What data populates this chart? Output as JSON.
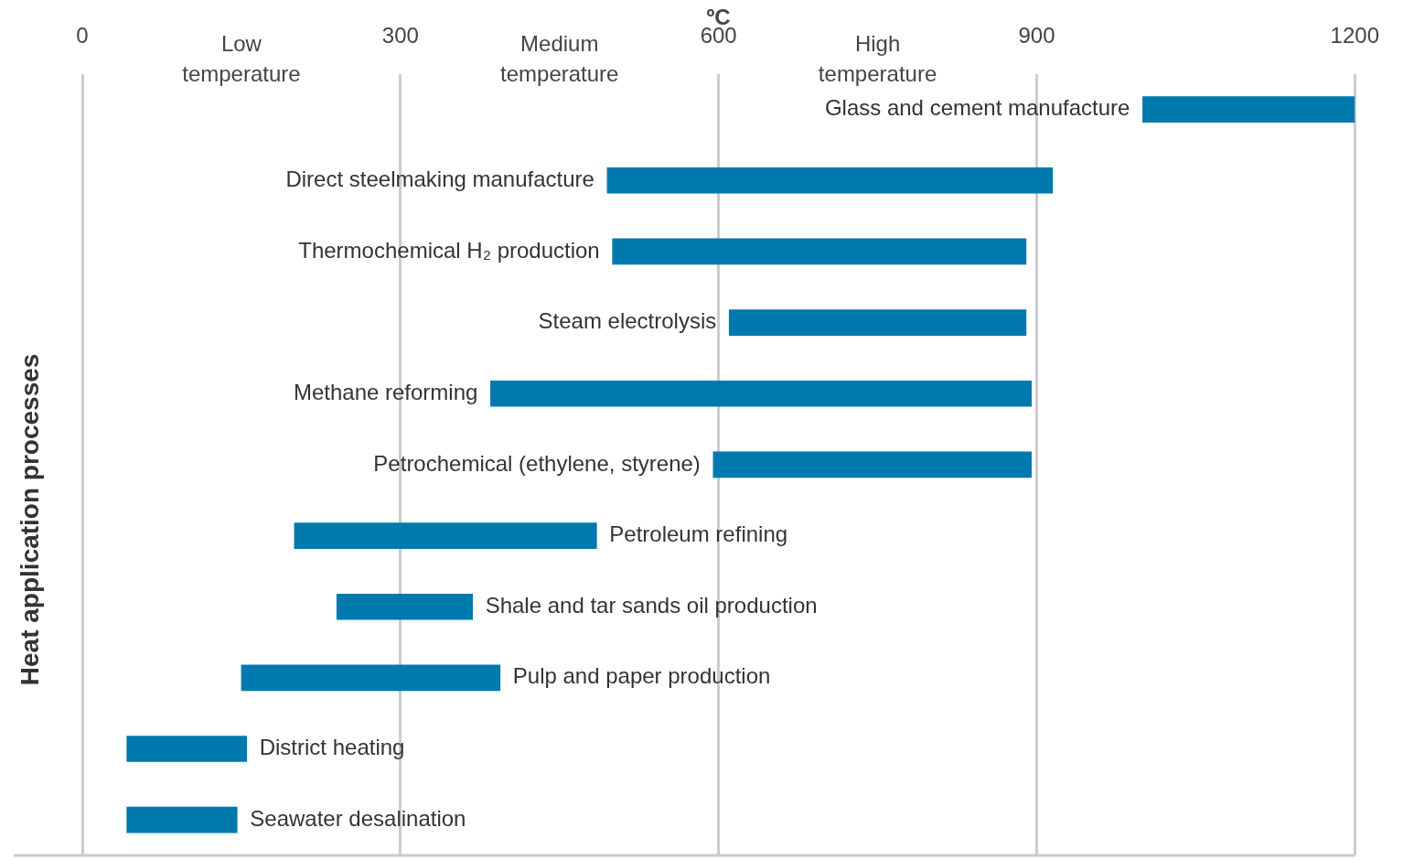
{
  "chart_data": {
    "type": "bar",
    "orientation": "horizontal",
    "xlabel": "ºC",
    "ylabel": "Heat application processes",
    "categories": [
      "Glass and cement manufacture",
      "Direct steelmaking manufacture",
      "Thermochemical H₂ production",
      "Steam electrolysis",
      "Methane reforming",
      "Petrochemical (ethylene, styrene)",
      "Petroleum refining",
      "Shale and tar sands oil production",
      "Pulp and paper production",
      "District heating",
      "Seawater desalination"
    ],
    "base": [
      1000,
      495,
      500,
      610,
      385,
      595,
      200,
      240,
      150,
      42,
      42
    ],
    "values": [
      200,
      420,
      390,
      280,
      510,
      300,
      285,
      128,
      244,
      113,
      104
    ],
    "color": "#0079ae",
    "xlim": [
      0,
      1200
    ],
    "xticks": [
      0,
      300,
      600,
      900,
      1200
    ],
    "annotations": [
      "Low temperature",
      "Medium temperature",
      "High temperature"
    ],
    "grid": "x",
    "tick_labels": "x",
    "legend": false
  }
}
